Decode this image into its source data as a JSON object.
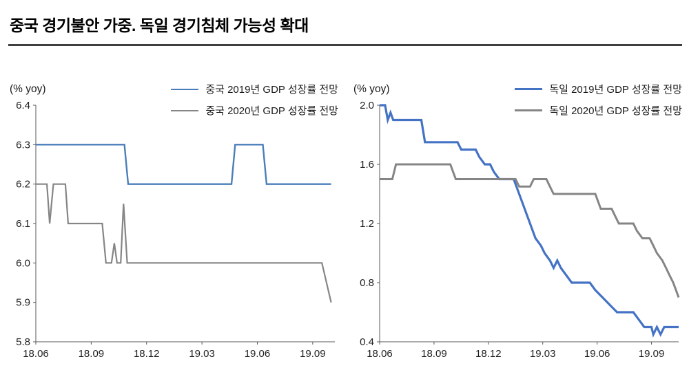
{
  "page": {
    "title": "중국 경기불안 가중. 독일 경기침체 가능성 확대"
  },
  "chart_data": [
    {
      "id": "china-gdp-forecast",
      "type": "line",
      "title": "",
      "y_axis_label": "(% yoy)",
      "ylim": [
        5.8,
        6.4
      ],
      "yticks": [
        5.8,
        5.9,
        6.0,
        6.1,
        6.2,
        6.3,
        6.4
      ],
      "xlim": [
        0,
        16.2
      ],
      "xticks": [
        {
          "x": 0,
          "label": "18.06"
        },
        {
          "x": 3,
          "label": "18.09"
        },
        {
          "x": 6,
          "label": "18.12"
        },
        {
          "x": 9,
          "label": "19.03"
        },
        {
          "x": 12,
          "label": "19.06"
        },
        {
          "x": 15,
          "label": "19.09"
        }
      ],
      "grid": false,
      "legend_position": "top-right",
      "series": [
        {
          "name": "중국 2019년 GDP 성장률 전망",
          "color": "#4a7ebb",
          "width": 2.4,
          "points": [
            [
              0,
              6.3
            ],
            [
              4.8,
              6.3
            ],
            [
              5.0,
              6.2
            ],
            [
              10.6,
              6.2
            ],
            [
              10.8,
              6.3
            ],
            [
              12.3,
              6.3
            ],
            [
              12.5,
              6.2
            ],
            [
              16.0,
              6.2
            ]
          ]
        },
        {
          "name": "중국 2020년 GDP 성장률 전망",
          "color": "#858585",
          "width": 2.2,
          "points": [
            [
              0,
              6.2
            ],
            [
              0.6,
              6.2
            ],
            [
              0.75,
              6.1
            ],
            [
              0.95,
              6.2
            ],
            [
              1.6,
              6.2
            ],
            [
              1.75,
              6.1
            ],
            [
              3.6,
              6.1
            ],
            [
              3.8,
              6.0
            ],
            [
              4.1,
              6.0
            ],
            [
              4.25,
              6.05
            ],
            [
              4.4,
              6.0
            ],
            [
              4.6,
              6.0
            ],
            [
              4.75,
              6.15
            ],
            [
              4.95,
              6.0
            ],
            [
              15.5,
              6.0
            ],
            [
              16.0,
              5.9
            ]
          ]
        }
      ]
    },
    {
      "id": "germany-gdp-forecast",
      "type": "line",
      "title": "",
      "y_axis_label": "(% yoy)",
      "ylim": [
        0.4,
        2.0
      ],
      "yticks": [
        0.4,
        0.8,
        1.2,
        1.6,
        2.0
      ],
      "xlim": [
        0,
        16.5
      ],
      "xticks": [
        {
          "x": 0,
          "label": "18.06"
        },
        {
          "x": 3,
          "label": "18.09"
        },
        {
          "x": 6,
          "label": "18.12"
        },
        {
          "x": 9,
          "label": "19.03"
        },
        {
          "x": 12,
          "label": "19.06"
        },
        {
          "x": 15,
          "label": "19.09"
        }
      ],
      "grid": false,
      "legend_position": "top-right",
      "series": [
        {
          "name": "독일 2019년 GDP 성장률 전망",
          "color": "#4472c4",
          "width": 3.2,
          "points": [
            [
              0,
              2.0
            ],
            [
              0.3,
              2.0
            ],
            [
              0.45,
              1.9
            ],
            [
              0.6,
              1.95
            ],
            [
              0.75,
              1.9
            ],
            [
              2.3,
              1.9
            ],
            [
              2.5,
              1.75
            ],
            [
              4.3,
              1.75
            ],
            [
              4.5,
              1.7
            ],
            [
              5.3,
              1.7
            ],
            [
              5.5,
              1.65
            ],
            [
              5.8,
              1.6
            ],
            [
              6.1,
              1.6
            ],
            [
              6.3,
              1.55
            ],
            [
              6.6,
              1.5
            ],
            [
              7.4,
              1.5
            ],
            [
              7.7,
              1.4
            ],
            [
              8.0,
              1.3
            ],
            [
              8.3,
              1.2
            ],
            [
              8.6,
              1.1
            ],
            [
              8.9,
              1.05
            ],
            [
              9.1,
              1.0
            ],
            [
              9.4,
              0.95
            ],
            [
              9.6,
              0.9
            ],
            [
              9.8,
              0.95
            ],
            [
              10.0,
              0.9
            ],
            [
              10.3,
              0.85
            ],
            [
              10.6,
              0.8
            ],
            [
              11.6,
              0.8
            ],
            [
              11.9,
              0.75
            ],
            [
              12.3,
              0.7
            ],
            [
              12.7,
              0.65
            ],
            [
              13.1,
              0.6
            ],
            [
              14.0,
              0.6
            ],
            [
              14.3,
              0.55
            ],
            [
              14.6,
              0.5
            ],
            [
              15.0,
              0.5
            ],
            [
              15.1,
              0.45
            ],
            [
              15.3,
              0.5
            ],
            [
              15.5,
              0.45
            ],
            [
              15.7,
              0.5
            ],
            [
              16.5,
              0.5
            ]
          ]
        },
        {
          "name": "독일 2020년 GDP 성장률 전망",
          "color": "#858585",
          "width": 3.0,
          "points": [
            [
              0,
              1.5
            ],
            [
              0.7,
              1.5
            ],
            [
              0.9,
              1.6
            ],
            [
              3.9,
              1.6
            ],
            [
              4.2,
              1.5
            ],
            [
              7.5,
              1.5
            ],
            [
              7.7,
              1.45
            ],
            [
              8.3,
              1.45
            ],
            [
              8.5,
              1.5
            ],
            [
              9.2,
              1.5
            ],
            [
              9.4,
              1.45
            ],
            [
              9.6,
              1.4
            ],
            [
              11.9,
              1.4
            ],
            [
              12.2,
              1.3
            ],
            [
              12.8,
              1.3
            ],
            [
              13.0,
              1.25
            ],
            [
              13.2,
              1.2
            ],
            [
              14.0,
              1.2
            ],
            [
              14.2,
              1.15
            ],
            [
              14.5,
              1.1
            ],
            [
              14.9,
              1.1
            ],
            [
              15.1,
              1.05
            ],
            [
              15.3,
              1.0
            ],
            [
              15.6,
              0.95
            ],
            [
              15.8,
              0.9
            ],
            [
              16.0,
              0.85
            ],
            [
              16.2,
              0.8
            ],
            [
              16.35,
              0.75
            ],
            [
              16.5,
              0.7
            ]
          ]
        }
      ]
    }
  ]
}
